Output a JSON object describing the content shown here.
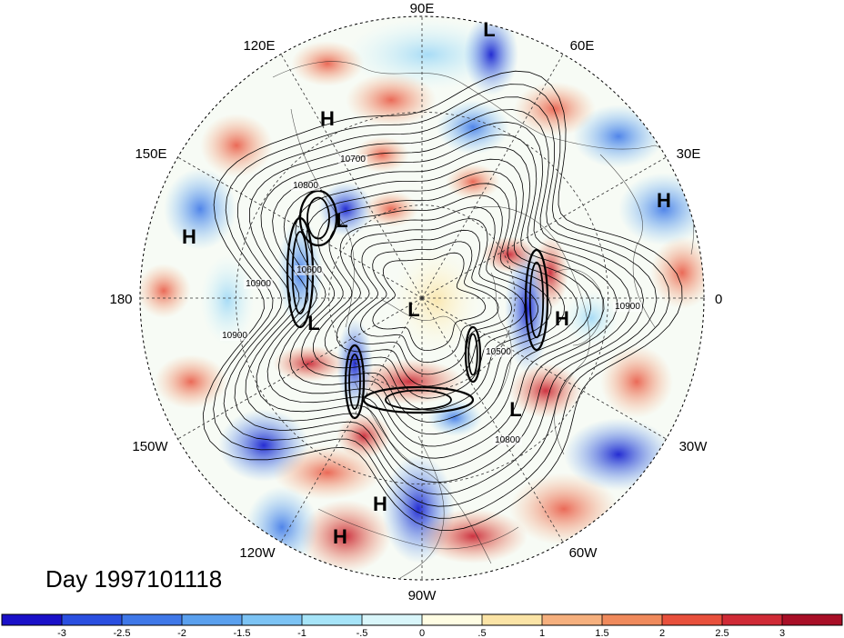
{
  "title": "Day 1997101118",
  "projection": "north-polar-stereographic",
  "longitude_labels": [
    {
      "id": "lon-90e",
      "text": "90E"
    },
    {
      "id": "lon-60e",
      "text": "60E"
    },
    {
      "id": "lon-30e",
      "text": "30E"
    },
    {
      "id": "lon-0",
      "text": "0"
    },
    {
      "id": "lon-30w",
      "text": "30W"
    },
    {
      "id": "lon-60w",
      "text": "60W"
    },
    {
      "id": "lon-90w",
      "text": "90W"
    },
    {
      "id": "lon-120w",
      "text": "120W"
    },
    {
      "id": "lon-150w",
      "text": "150W"
    },
    {
      "id": "lon-180",
      "text": "180"
    },
    {
      "id": "lon-150e",
      "text": "150E"
    },
    {
      "id": "lon-120e",
      "text": "120E"
    }
  ],
  "pressure_centers": [
    {
      "type": "L",
      "label": "L"
    },
    {
      "type": "H",
      "label": "H"
    },
    {
      "type": "H",
      "label": "H"
    },
    {
      "type": "L",
      "label": "L"
    },
    {
      "type": "H",
      "label": "H"
    },
    {
      "type": "L",
      "label": "L"
    },
    {
      "type": "L",
      "label": "L"
    },
    {
      "type": "H",
      "label": "H"
    },
    {
      "type": "L",
      "label": "L"
    },
    {
      "type": "H",
      "label": "H"
    },
    {
      "type": "H",
      "label": "H"
    }
  ],
  "contour_labels": [
    "10700",
    "10800",
    "10900",
    "10900",
    "10900",
    "10500",
    "10800",
    "10600"
  ],
  "colorbar": {
    "colors": [
      "#1a10c8",
      "#2a4fe0",
      "#3f78e8",
      "#5aa0ee",
      "#7cc3f4",
      "#a6e4f8",
      "#d9f6fa",
      "#fffde3",
      "#fbe4a6",
      "#f6b07e",
      "#f08a5c",
      "#e8503c",
      "#d02a36",
      "#a80e26"
    ],
    "ticks": [
      "-3",
      "-2.5",
      "-2",
      "-1.5",
      "-1",
      "-.5",
      "0",
      ".5",
      "1",
      "1.5",
      "2",
      "2.5",
      "3"
    ]
  }
}
